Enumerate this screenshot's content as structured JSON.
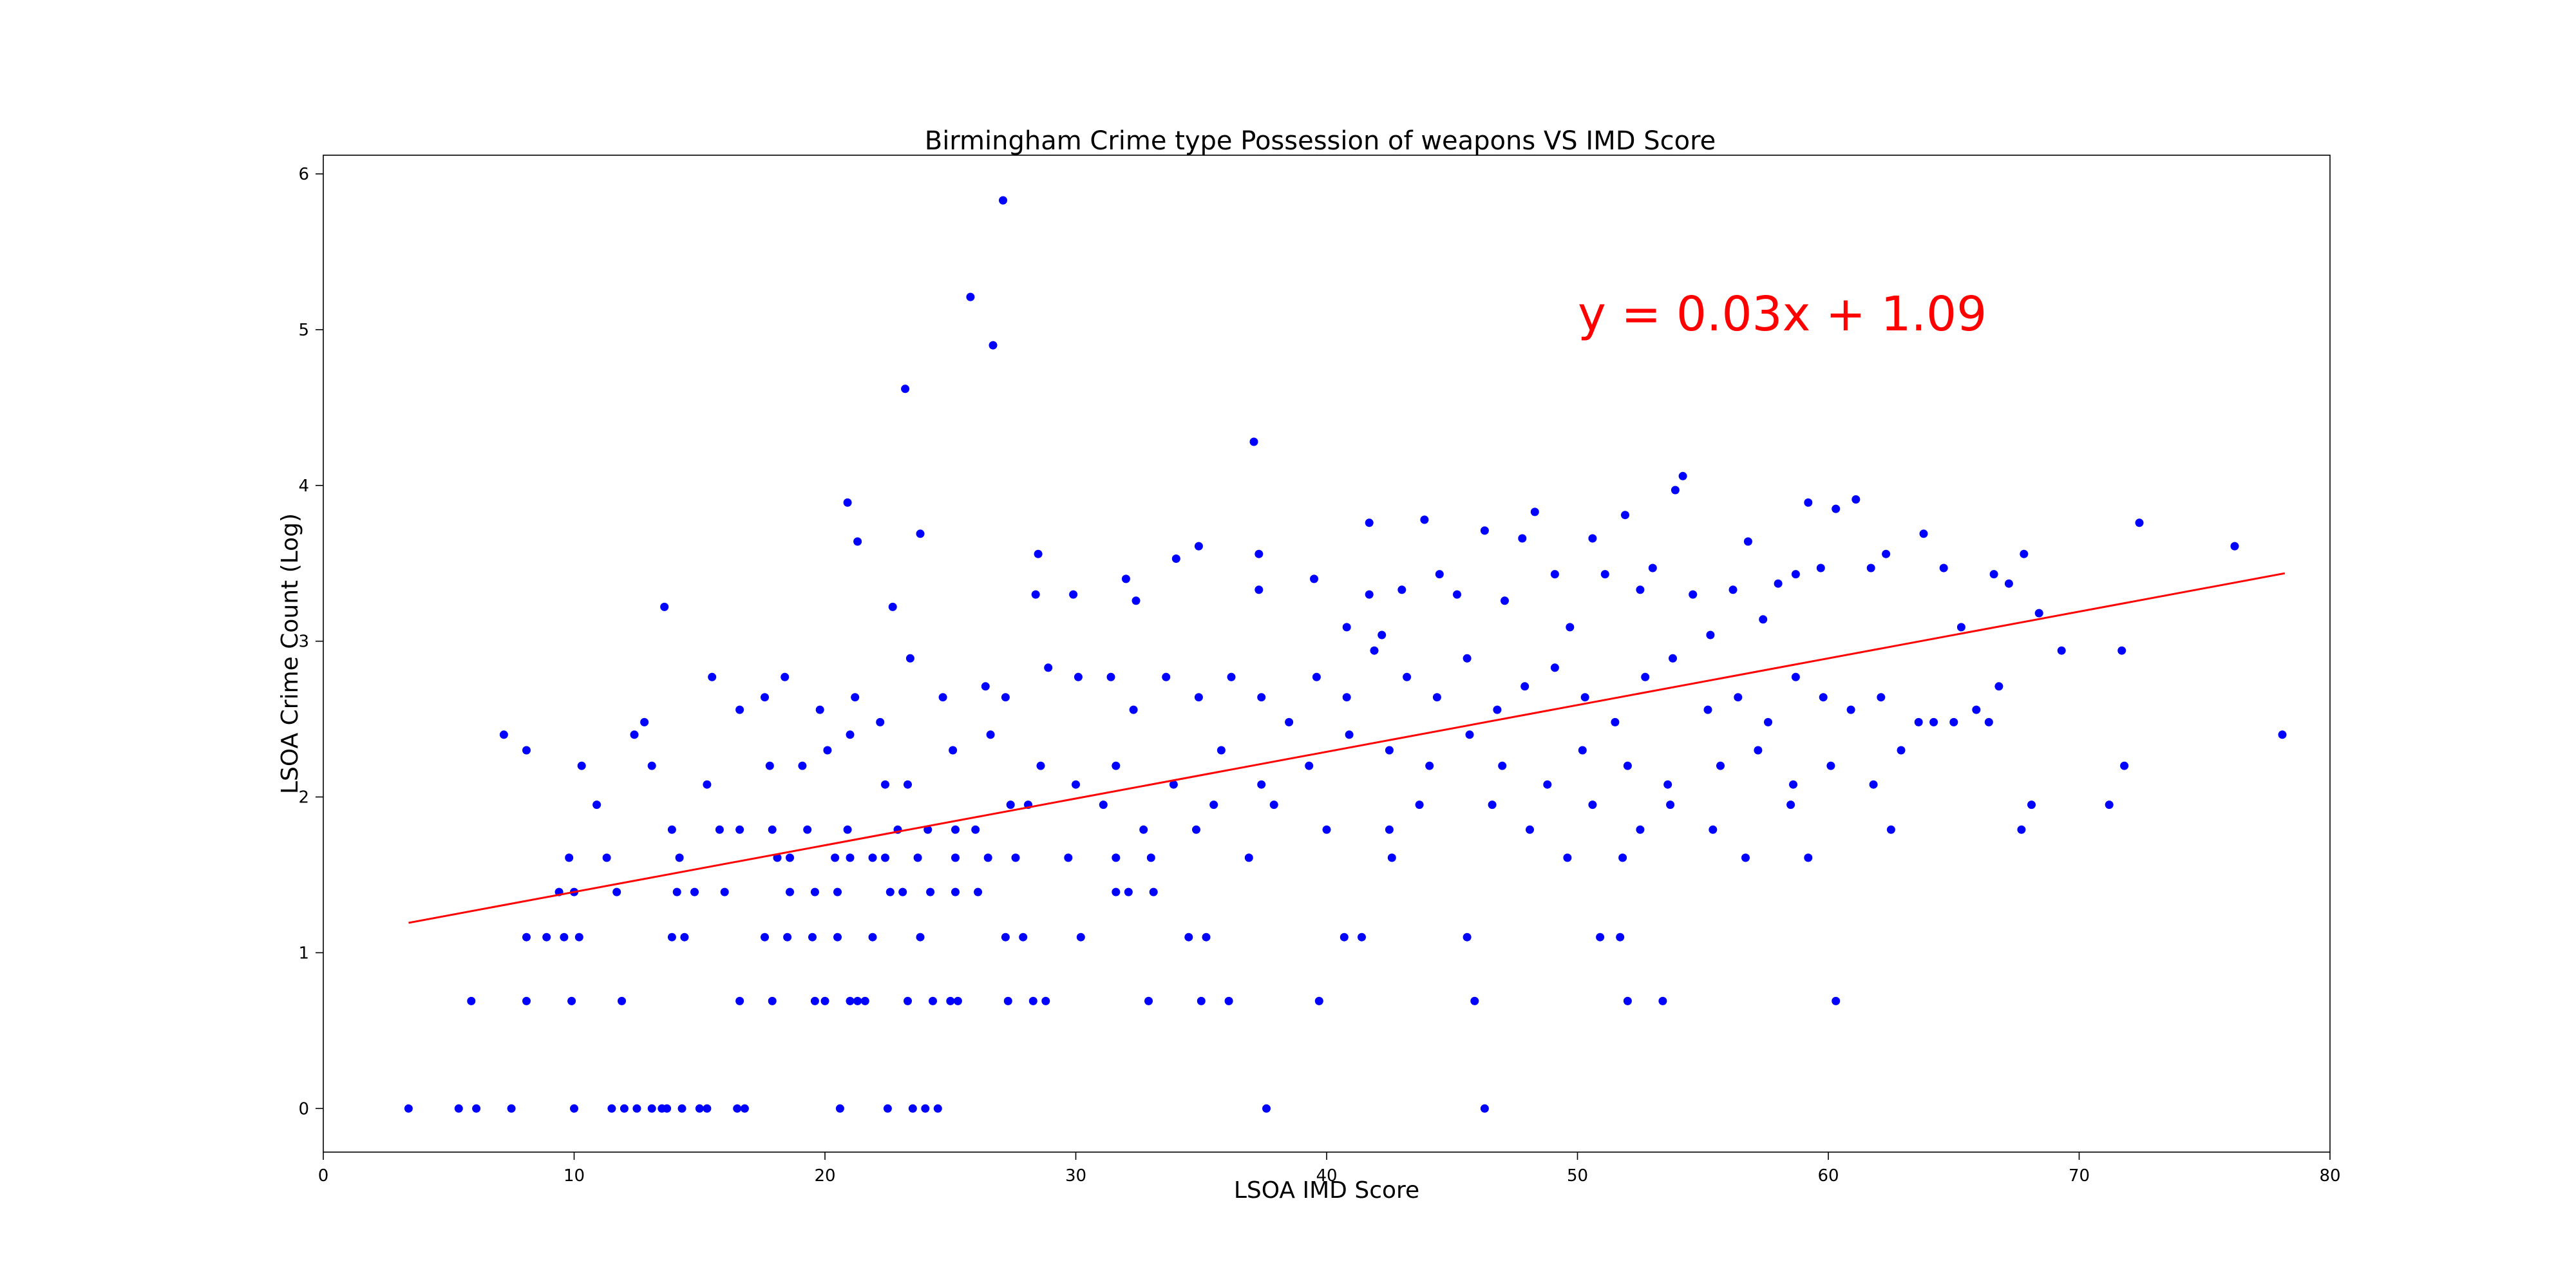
{
  "chart_data": {
    "type": "scatter",
    "title": "Birmingham Crime type Possession of weapons VS IMD Score",
    "xlabel": "LSOA IMD Score",
    "ylabel": "LSOA Crime Count (Log)",
    "xlim": [
      0,
      80
    ],
    "ylim": [
      -0.28,
      6.12
    ],
    "xticks": [
      0,
      10,
      20,
      30,
      40,
      50,
      60,
      70,
      80
    ],
    "yticks": [
      0,
      1,
      2,
      3,
      4,
      5,
      6
    ],
    "grid": false,
    "point_color": "#0000ff",
    "line_color": "#ff0000",
    "annotation": "y = 0.03x + 1.09",
    "regression": {
      "slope": 0.03,
      "intercept": 1.09,
      "x_range": [
        3.4,
        78.2
      ]
    },
    "points": [
      [
        3.4,
        0
      ],
      [
        5.4,
        0
      ],
      [
        6.1,
        0
      ],
      [
        7.5,
        0
      ],
      [
        10.0,
        0
      ],
      [
        11.5,
        0
      ],
      [
        12.0,
        0
      ],
      [
        12.5,
        0
      ],
      [
        13.1,
        0
      ],
      [
        13.5,
        0
      ],
      [
        13.7,
        0
      ],
      [
        14.3,
        0
      ],
      [
        15.0,
        0
      ],
      [
        15.3,
        0
      ],
      [
        16.5,
        0
      ],
      [
        16.8,
        0
      ],
      [
        20.6,
        0
      ],
      [
        22.5,
        0
      ],
      [
        23.5,
        0
      ],
      [
        24.0,
        0
      ],
      [
        24.5,
        0
      ],
      [
        37.6,
        0
      ],
      [
        46.3,
        0
      ],
      [
        5.9,
        0.69
      ],
      [
        8.1,
        0.69
      ],
      [
        9.9,
        0.69
      ],
      [
        11.9,
        0.69
      ],
      [
        16.6,
        0.69
      ],
      [
        17.9,
        0.69
      ],
      [
        19.6,
        0.69
      ],
      [
        20.0,
        0.69
      ],
      [
        21.0,
        0.69
      ],
      [
        21.3,
        0.69
      ],
      [
        21.6,
        0.69
      ],
      [
        23.3,
        0.69
      ],
      [
        24.3,
        0.69
      ],
      [
        25.0,
        0.69
      ],
      [
        25.3,
        0.69
      ],
      [
        27.3,
        0.69
      ],
      [
        28.3,
        0.69
      ],
      [
        28.8,
        0.69
      ],
      [
        32.9,
        0.69
      ],
      [
        35.0,
        0.69
      ],
      [
        36.1,
        0.69
      ],
      [
        39.7,
        0.69
      ],
      [
        45.9,
        0.69
      ],
      [
        52.0,
        0.69
      ],
      [
        53.4,
        0.69
      ],
      [
        60.3,
        0.69
      ],
      [
        8.1,
        1.1
      ],
      [
        8.9,
        1.1
      ],
      [
        9.6,
        1.1
      ],
      [
        10.2,
        1.1
      ],
      [
        13.9,
        1.1
      ],
      [
        14.4,
        1.1
      ],
      [
        17.6,
        1.1
      ],
      [
        18.5,
        1.1
      ],
      [
        19.5,
        1.1
      ],
      [
        20.5,
        1.1
      ],
      [
        21.9,
        1.1
      ],
      [
        23.8,
        1.1
      ],
      [
        27.2,
        1.1
      ],
      [
        27.9,
        1.1
      ],
      [
        30.2,
        1.1
      ],
      [
        34.5,
        1.1
      ],
      [
        35.2,
        1.1
      ],
      [
        40.7,
        1.1
      ],
      [
        41.4,
        1.1
      ],
      [
        45.6,
        1.1
      ],
      [
        50.9,
        1.1
      ],
      [
        51.7,
        1.1
      ],
      [
        9.4,
        1.39
      ],
      [
        10.0,
        1.39
      ],
      [
        11.7,
        1.39
      ],
      [
        14.1,
        1.39
      ],
      [
        14.8,
        1.39
      ],
      [
        16.0,
        1.39
      ],
      [
        18.6,
        1.39
      ],
      [
        19.6,
        1.39
      ],
      [
        20.5,
        1.39
      ],
      [
        22.6,
        1.39
      ],
      [
        23.1,
        1.39
      ],
      [
        24.2,
        1.39
      ],
      [
        25.2,
        1.39
      ],
      [
        26.1,
        1.39
      ],
      [
        31.6,
        1.39
      ],
      [
        32.1,
        1.39
      ],
      [
        33.1,
        1.39
      ],
      [
        9.8,
        1.61
      ],
      [
        11.3,
        1.61
      ],
      [
        14.2,
        1.61
      ],
      [
        18.1,
        1.61
      ],
      [
        18.6,
        1.61
      ],
      [
        20.4,
        1.61
      ],
      [
        21.0,
        1.61
      ],
      [
        21.9,
        1.61
      ],
      [
        22.4,
        1.61
      ],
      [
        23.7,
        1.61
      ],
      [
        25.2,
        1.61
      ],
      [
        26.5,
        1.61
      ],
      [
        27.6,
        1.61
      ],
      [
        29.7,
        1.61
      ],
      [
        31.6,
        1.61
      ],
      [
        33.0,
        1.61
      ],
      [
        36.9,
        1.61
      ],
      [
        42.6,
        1.61
      ],
      [
        49.6,
        1.61
      ],
      [
        51.8,
        1.61
      ],
      [
        56.7,
        1.61
      ],
      [
        59.2,
        1.61
      ],
      [
        10.9,
        1.95
      ],
      [
        13.9,
        1.79
      ],
      [
        15.8,
        1.79
      ],
      [
        16.6,
        1.79
      ],
      [
        17.9,
        1.79
      ],
      [
        19.3,
        1.79
      ],
      [
        20.9,
        1.79
      ],
      [
        22.9,
        1.79
      ],
      [
        24.1,
        1.79
      ],
      [
        25.2,
        1.79
      ],
      [
        26.0,
        1.79
      ],
      [
        27.4,
        1.95
      ],
      [
        28.1,
        1.95
      ],
      [
        31.1,
        1.95
      ],
      [
        32.7,
        1.79
      ],
      [
        34.8,
        1.79
      ],
      [
        35.5,
        1.95
      ],
      [
        37.9,
        1.95
      ],
      [
        40.0,
        1.79
      ],
      [
        42.5,
        1.79
      ],
      [
        43.7,
        1.95
      ],
      [
        46.6,
        1.95
      ],
      [
        48.1,
        1.79
      ],
      [
        50.6,
        1.95
      ],
      [
        52.5,
        1.79
      ],
      [
        53.7,
        1.95
      ],
      [
        55.4,
        1.79
      ],
      [
        58.5,
        1.95
      ],
      [
        62.5,
        1.79
      ],
      [
        67.7,
        1.79
      ],
      [
        68.1,
        1.95
      ],
      [
        71.2,
        1.95
      ],
      [
        8.1,
        2.3
      ],
      [
        10.3,
        2.2
      ],
      [
        12.4,
        2.4
      ],
      [
        13.1,
        2.2
      ],
      [
        15.3,
        2.08
      ],
      [
        17.8,
        2.2
      ],
      [
        19.1,
        2.2
      ],
      [
        20.1,
        2.3
      ],
      [
        21.0,
        2.4
      ],
      [
        22.4,
        2.08
      ],
      [
        23.3,
        2.08
      ],
      [
        25.1,
        2.3
      ],
      [
        26.6,
        2.4
      ],
      [
        28.6,
        2.2
      ],
      [
        30.0,
        2.08
      ],
      [
        31.6,
        2.2
      ],
      [
        33.9,
        2.08
      ],
      [
        35.8,
        2.3
      ],
      [
        37.4,
        2.08
      ],
      [
        39.3,
        2.2
      ],
      [
        40.9,
        2.4
      ],
      [
        42.5,
        2.3
      ],
      [
        44.1,
        2.2
      ],
      [
        45.7,
        2.4
      ],
      [
        47.0,
        2.2
      ],
      [
        48.8,
        2.08
      ],
      [
        50.2,
        2.3
      ],
      [
        52.0,
        2.2
      ],
      [
        53.6,
        2.08
      ],
      [
        55.7,
        2.2
      ],
      [
        57.2,
        2.3
      ],
      [
        58.6,
        2.08
      ],
      [
        60.1,
        2.2
      ],
      [
        61.8,
        2.08
      ],
      [
        62.9,
        2.3
      ],
      [
        64.2,
        2.48
      ],
      [
        66.4,
        2.48
      ],
      [
        71.8,
        2.2
      ],
      [
        78.1,
        2.4
      ],
      [
        7.2,
        2.4
      ],
      [
        12.8,
        2.48
      ],
      [
        15.5,
        2.77
      ],
      [
        16.6,
        2.56
      ],
      [
        17.6,
        2.64
      ],
      [
        18.4,
        2.77
      ],
      [
        19.8,
        2.56
      ],
      [
        21.2,
        2.64
      ],
      [
        22.2,
        2.48
      ],
      [
        23.4,
        2.89
      ],
      [
        24.7,
        2.64
      ],
      [
        26.4,
        2.71
      ],
      [
        27.2,
        2.64
      ],
      [
        28.9,
        2.83
      ],
      [
        30.1,
        2.77
      ],
      [
        31.4,
        2.77
      ],
      [
        32.3,
        2.56
      ],
      [
        33.6,
        2.77
      ],
      [
        34.9,
        2.64
      ],
      [
        36.2,
        2.77
      ],
      [
        37.4,
        2.64
      ],
      [
        38.5,
        2.48
      ],
      [
        39.6,
        2.77
      ],
      [
        40.8,
        2.64
      ],
      [
        41.9,
        2.94
      ],
      [
        43.2,
        2.77
      ],
      [
        44.4,
        2.64
      ],
      [
        45.6,
        2.89
      ],
      [
        46.8,
        2.56
      ],
      [
        47.9,
        2.71
      ],
      [
        49.1,
        2.83
      ],
      [
        50.3,
        2.64
      ],
      [
        51.5,
        2.48
      ],
      [
        52.7,
        2.77
      ],
      [
        53.8,
        2.89
      ],
      [
        55.2,
        2.56
      ],
      [
        56.4,
        2.64
      ],
      [
        57.6,
        2.48
      ],
      [
        58.7,
        2.77
      ],
      [
        59.8,
        2.64
      ],
      [
        60.9,
        2.56
      ],
      [
        62.1,
        2.64
      ],
      [
        63.6,
        2.48
      ],
      [
        65.0,
        2.48
      ],
      [
        65.9,
        2.56
      ],
      [
        66.8,
        2.71
      ],
      [
        69.3,
        2.94
      ],
      [
        71.7,
        2.94
      ],
      [
        13.6,
        3.22
      ],
      [
        22.7,
        3.22
      ],
      [
        23.8,
        3.69
      ],
      [
        20.9,
        3.89
      ],
      [
        21.3,
        3.64
      ],
      [
        28.4,
        3.3
      ],
      [
        28.5,
        3.56
      ],
      [
        29.9,
        3.3
      ],
      [
        32.0,
        3.4
      ],
      [
        32.4,
        3.26
      ],
      [
        34.0,
        3.53
      ],
      [
        34.9,
        3.61
      ],
      [
        37.3,
        3.33
      ],
      [
        37.3,
        3.56
      ],
      [
        39.5,
        3.4
      ],
      [
        40.8,
        3.09
      ],
      [
        41.7,
        3.3
      ],
      [
        42.2,
        3.04
      ],
      [
        43.0,
        3.33
      ],
      [
        43.9,
        3.78
      ],
      [
        44.5,
        3.43
      ],
      [
        45.2,
        3.3
      ],
      [
        46.3,
        3.71
      ],
      [
        47.1,
        3.26
      ],
      [
        47.8,
        3.66
      ],
      [
        48.3,
        3.83
      ],
      [
        49.1,
        3.43
      ],
      [
        49.7,
        3.09
      ],
      [
        50.6,
        3.66
      ],
      [
        51.1,
        3.43
      ],
      [
        51.9,
        3.81
      ],
      [
        52.5,
        3.33
      ],
      [
        53.0,
        3.47
      ],
      [
        53.9,
        3.97
      ],
      [
        54.2,
        4.06
      ],
      [
        54.6,
        3.3
      ],
      [
        55.3,
        3.04
      ],
      [
        56.2,
        3.33
      ],
      [
        56.8,
        3.64
      ],
      [
        57.4,
        3.14
      ],
      [
        58.0,
        3.37
      ],
      [
        58.7,
        3.43
      ],
      [
        59.2,
        3.89
      ],
      [
        59.7,
        3.47
      ],
      [
        60.3,
        3.85
      ],
      [
        61.1,
        3.91
      ],
      [
        61.7,
        3.47
      ],
      [
        62.3,
        3.56
      ],
      [
        63.8,
        3.69
      ],
      [
        64.6,
        3.47
      ],
      [
        65.3,
        3.09
      ],
      [
        66.6,
        3.43
      ],
      [
        67.2,
        3.37
      ],
      [
        67.8,
        3.56
      ],
      [
        68.4,
        3.18
      ],
      [
        72.4,
        3.76
      ],
      [
        76.2,
        3.61
      ],
      [
        23.2,
        4.62
      ],
      [
        25.8,
        5.21
      ],
      [
        26.7,
        4.9
      ],
      [
        27.1,
        5.83
      ],
      [
        37.1,
        4.28
      ],
      [
        41.7,
        3.76
      ]
    ]
  }
}
